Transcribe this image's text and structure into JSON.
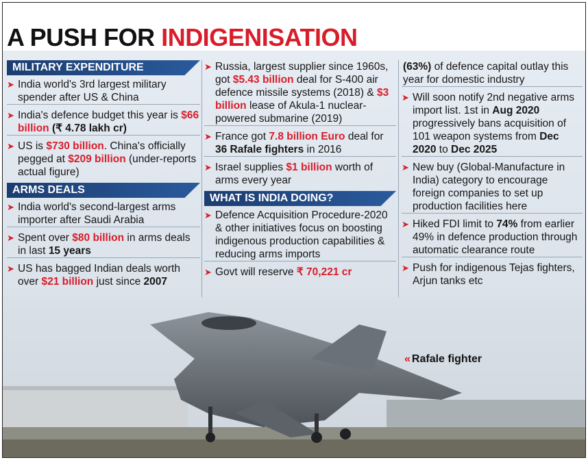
{
  "title": {
    "part1": "A PUSH FOR ",
    "part2": "INDIGENISATION"
  },
  "military_expenditure": {
    "heading": "MILITARY EXPENDITURE",
    "item1": "India world's 3rd largest military spender after US & China",
    "item2_pre": "India's defence budget this year is ",
    "item2_val": "$66 billion",
    "item2_post": " (₹ 4.78 lakh cr)",
    "item3_pre": "US is ",
    "item3_val": "$730 billion",
    "item3_mid": ". China's officially pegged at ",
    "item3_val2": "$209 billion",
    "item3_post": " (under-reports actual figure)"
  },
  "arms_deals": {
    "heading": "ARMS DEALS",
    "item1": "India world's second-largest arms importer after Saudi Arabia",
    "item2_pre": "Spent over ",
    "item2_val": "$80 billion",
    "item2_mid": " in arms deals in last ",
    "item2_years": "15 years",
    "item3_pre": "US has bagged Indian deals worth over ",
    "item3_val": "$21 billion",
    "item3_mid": " just since ",
    "item3_year": "2007"
  },
  "col2": {
    "russia_pre": "Russia, largest supplier since 1960s, got ",
    "russia_val": "$5.43 billion",
    "russia_mid": " deal for S-400 air defence missile systems (2018) & ",
    "russia_val2": "$3 billion",
    "russia_post": " lease of Akula-1 nuclear-powered submarine (2019)",
    "france_pre": "France got ",
    "france_val": "7.8 billion Euro",
    "france_mid": " deal for ",
    "france_bold": "36 Rafale fighters",
    "france_post": " in 2016",
    "israel_pre": "Israel supplies ",
    "israel_val": "$1 billion",
    "israel_post": " worth of arms every year",
    "india_heading": "WHAT IS INDIA DOING?",
    "dap": "Defence Acquisition Procedure-2020 & other initiatives focus on boosting indigenous production capabilities & reducing arms imports",
    "reserve_pre": "Govt will reserve ",
    "reserve_val": "₹ 70,221 cr"
  },
  "col3": {
    "cont_bold": "(63%)",
    "cont_post": " of defence capital outlay this year for domestic industry",
    "neg_pre": "Will soon notify 2nd negative arms import list. 1st in ",
    "neg_date": "Aug 2020",
    "neg_mid": " progressively bans acquisition of 101 weapon systems from ",
    "neg_from": "Dec 2020",
    "neg_to_word": " to ",
    "neg_to": "Dec 2025",
    "newbuy": "New buy (Global-Manufacture in India) category to encourage foreign companies to set up production facilities here",
    "fdi_pre": "Hiked FDI limit to ",
    "fdi_val": "74%",
    "fdi_post": " from earlier 49% in defence production through automatic clearance route",
    "push": "Push for indigenous Tejas fighters, Arjun tanks etc"
  },
  "caption": {
    "chevron": "«",
    "text": "Rafale fighter"
  },
  "colors": {
    "red": "#d81d2a",
    "header_blue": "#1c3d70"
  }
}
